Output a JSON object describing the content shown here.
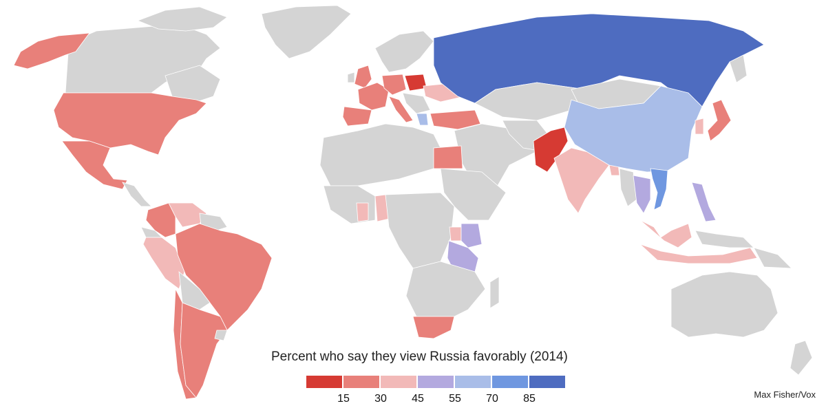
{
  "title": "Percent who say they view Russia favorably (2014)",
  "credit": "Max Fisher/Vox",
  "legend": {
    "colors": [
      "#d63a33",
      "#e8807a",
      "#f2b9b8",
      "#b3a9df",
      "#a9bde8",
      "#6f97e0",
      "#4e6cc0"
    ],
    "ticks": [
      "15",
      "30",
      "45",
      "55",
      "70",
      "85"
    ]
  },
  "no_data_color": "#d4d4d4",
  "map_data": {
    "regions": [
      {
        "name": "Russia",
        "bin": 6
      },
      {
        "name": "China",
        "bin": 4
      },
      {
        "name": "Vietnam",
        "bin": 5
      },
      {
        "name": "Philippines",
        "bin": 3
      },
      {
        "name": "Thailand",
        "bin": 3
      },
      {
        "name": "Kenya",
        "bin": 3
      },
      {
        "name": "Tanzania",
        "bin": 3
      },
      {
        "name": "Greece",
        "bin": 4
      },
      {
        "name": "Poland",
        "bin": 0
      },
      {
        "name": "Pakistan",
        "bin": 0
      },
      {
        "name": "United States",
        "bin": 1
      },
      {
        "name": "Mexico",
        "bin": 1
      },
      {
        "name": "Brazil",
        "bin": 1
      },
      {
        "name": "Argentina",
        "bin": 1
      },
      {
        "name": "Chile",
        "bin": 1
      },
      {
        "name": "Colombia",
        "bin": 1
      },
      {
        "name": "South Africa",
        "bin": 1
      },
      {
        "name": "Egypt",
        "bin": 1
      },
      {
        "name": "Japan",
        "bin": 1
      },
      {
        "name": "Turkey",
        "bin": 1
      },
      {
        "name": "Spain",
        "bin": 1
      },
      {
        "name": "France",
        "bin": 1
      },
      {
        "name": "Germany",
        "bin": 1
      },
      {
        "name": "United Kingdom",
        "bin": 1
      },
      {
        "name": "Italy",
        "bin": 1
      },
      {
        "name": "Alaska",
        "bin": 1
      },
      {
        "name": "India",
        "bin": 2
      },
      {
        "name": "Indonesia",
        "bin": 2
      },
      {
        "name": "Malaysia",
        "bin": 2
      },
      {
        "name": "Nigeria",
        "bin": 2
      },
      {
        "name": "Peru",
        "bin": 2
      },
      {
        "name": "Venezuela",
        "bin": 2
      },
      {
        "name": "Ukraine",
        "bin": 2
      },
      {
        "name": "South Korea",
        "bin": 2
      },
      {
        "name": "Bangladesh",
        "bin": 2
      },
      {
        "name": "Ghana",
        "bin": 2
      },
      {
        "name": "Uganda",
        "bin": 2
      }
    ]
  }
}
